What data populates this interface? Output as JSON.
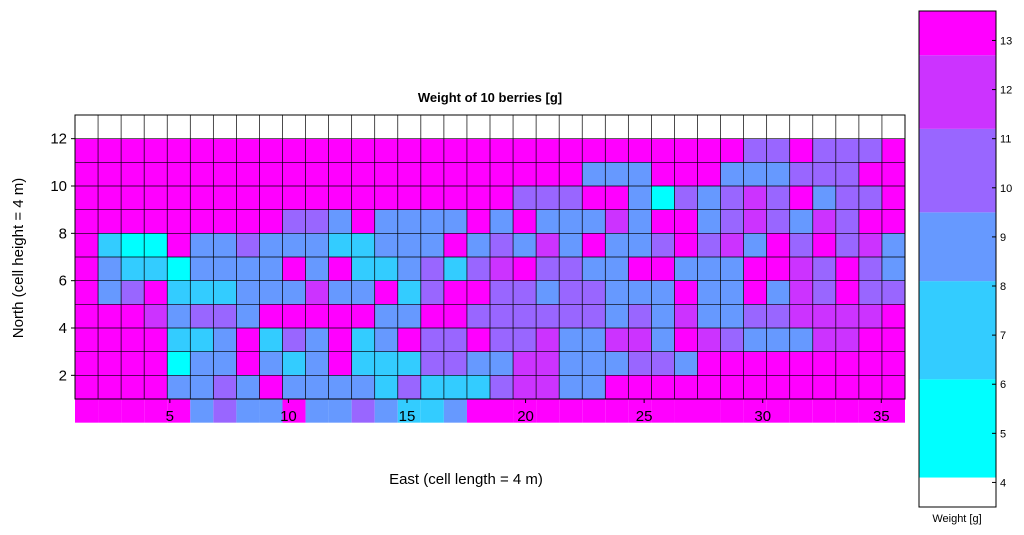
{
  "chart_data": {
    "type": "heatmap",
    "title": "Weight of 10 berries [g]",
    "xlabel": "East (cell length = 4 m)",
    "ylabel": "North (cell height = 4 m)",
    "xlim": [
      1,
      36
    ],
    "ylim": [
      1,
      13
    ],
    "x_ticks": [
      5,
      10,
      15,
      20,
      25,
      30,
      35
    ],
    "y_ticks": [
      2,
      4,
      6,
      8,
      10,
      12
    ],
    "grid": true,
    "colorbar": {
      "label": "Weight [g]",
      "ticks": [
        4,
        5,
        6,
        7,
        8,
        9,
        10,
        11,
        12,
        13
      ],
      "bins": [
        {
          "from": 3.5,
          "to": 4.1,
          "color": "#ffffff"
        },
        {
          "from": 4.1,
          "to": 6.1,
          "color": "#00ffff"
        },
        {
          "from": 6.1,
          "to": 8.1,
          "color": "#33ccff"
        },
        {
          "from": 8.1,
          "to": 9.5,
          "color": "#6699ff"
        },
        {
          "from": 9.5,
          "to": 11.2,
          "color": "#9966ff"
        },
        {
          "from": 11.2,
          "to": 12.7,
          "color": "#cc33ff"
        },
        {
          "from": 12.7,
          "to": 13.6,
          "color": "#ff00ff"
        }
      ]
    },
    "value_scale": [
      0,
      5,
      7,
      8.5,
      10,
      12,
      13
    ],
    "rows": [
      {
        "north": 12,
        "values": "000000000000000000000000000004404440"
      },
      {
        "north": 11,
        "values": "000000000000000000000033300033344400"
      },
      {
        "north": 10,
        "values": "000000000000000000044400314345403440"
      },
      {
        "number": 9,
        "north": 9,
        "values": "000000000443033330303335300345435400"
      },
      {
        "north": 8,
        "values": "021103343332233303435303340453040453"
      },
      {
        "north": 7,
        "values": "032213333030223424504433003330054043"
      },
      {
        "north": 6,
        "values": "034022233353302400443443330330354644"
      },
      {
        "north": 5,
        "values": "000534430000033004444443435334455550"
      },
      {
        "north": 4,
        "values": "000022302430230440445335530543335500"
      },
      {
        "north": 3,
        "values": "000013303230222443355333443000000000"
      },
      {
        "north": 2,
        "values": "000033430333324222455330000000000000"
      },
      {
        "north": 1,
        "values": "000003433033432230000000000000000000"
      }
    ]
  }
}
